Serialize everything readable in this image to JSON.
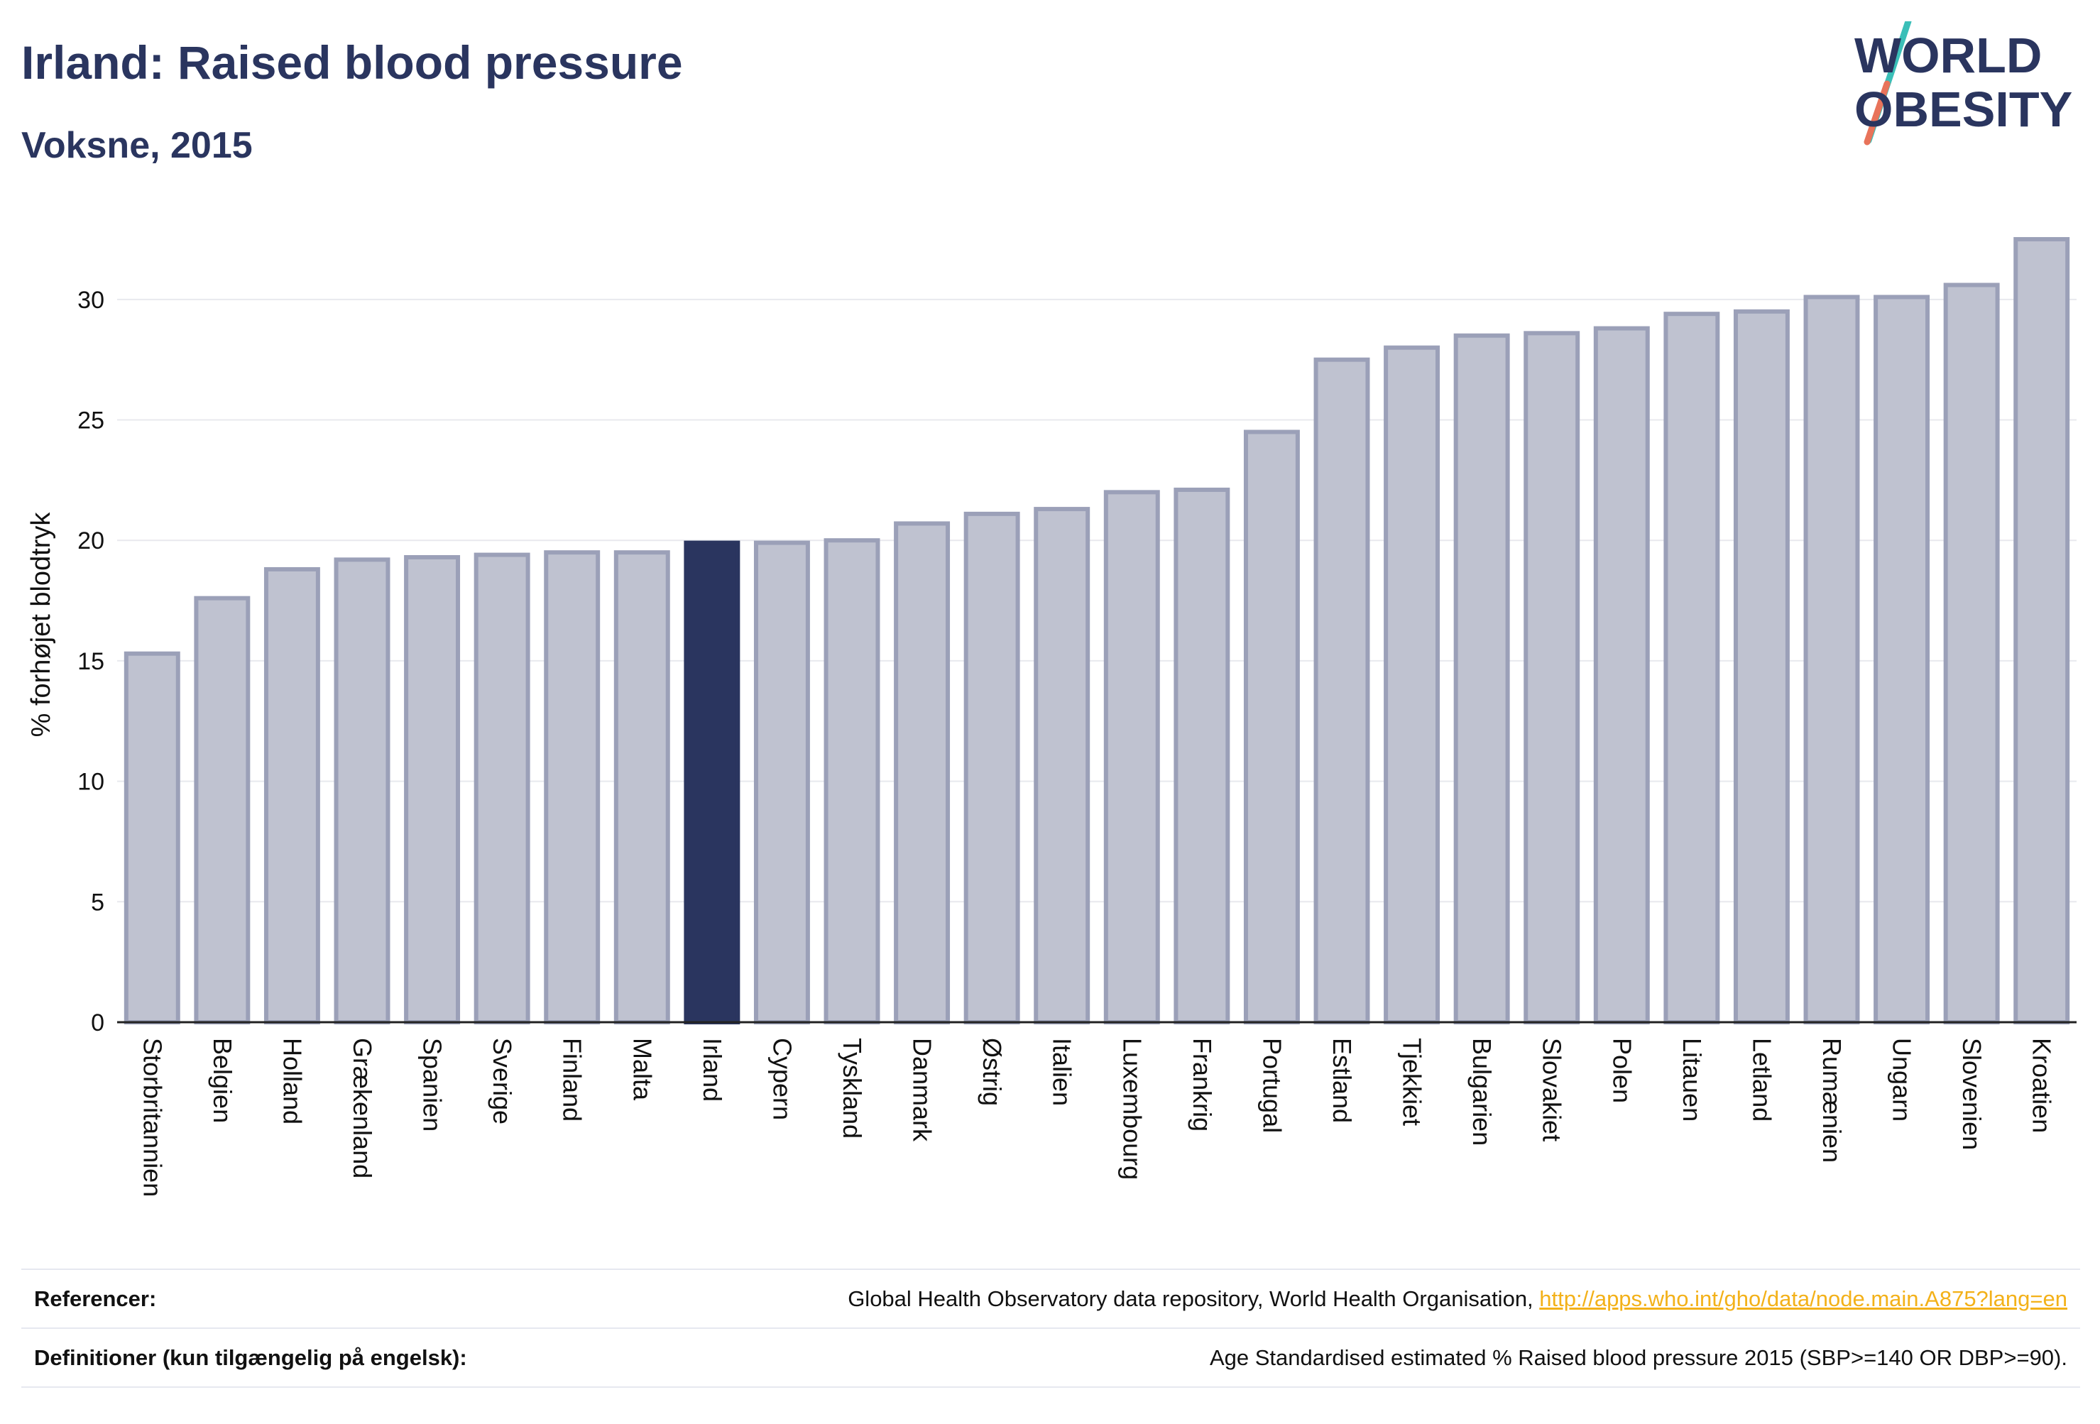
{
  "header": {
    "title": "Irland: Raised blood pressure",
    "subtitle": "Voksne, 2015"
  },
  "logo": {
    "line1": "WORLD",
    "line2": "OBESITY"
  },
  "colors": {
    "highlight": "#2a355f",
    "bar_fill": "#bfc2d0",
    "bar_stroke": "#9ba0b8",
    "grid": "#e8e9ee",
    "logo_teal": "#3bbfb8",
    "logo_coral": "#e8735a",
    "link": "#f3b119"
  },
  "chart_data": {
    "type": "bar",
    "ylabel": "% forhøjet blodtryk",
    "xlabel": "",
    "ylim": [
      0,
      33
    ],
    "yticks": [
      0,
      5,
      10,
      15,
      20,
      25,
      30
    ],
    "grid": true,
    "highlight": "Irland",
    "categories": [
      "Storbritannien",
      "Belgien",
      "Holland",
      "Grækenland",
      "Spanien",
      "Sverige",
      "Finland",
      "Malta",
      "Irland",
      "Cypern",
      "Tyskland",
      "Danmark",
      "Østrig",
      "Italien",
      "Luxembourg",
      "Frankrig",
      "Portugal",
      "Estland",
      "Tjekkiet",
      "Bulgarien",
      "Slovakiet",
      "Polen",
      "Litauen",
      "Letland",
      "Rumænien",
      "Ungarn",
      "Slovenien",
      "Kroatien"
    ],
    "values": [
      15.3,
      17.6,
      18.8,
      19.2,
      19.3,
      19.4,
      19.5,
      19.5,
      19.9,
      19.9,
      20.0,
      20.7,
      21.1,
      21.3,
      22.0,
      22.1,
      24.5,
      27.5,
      28.0,
      28.5,
      28.6,
      28.8,
      29.4,
      29.5,
      30.1,
      30.1,
      30.6,
      32.5
    ]
  },
  "footer": {
    "references_label": "Referencer:",
    "references_text": "Global Health Observatory data repository, World Health Organisation, ",
    "references_link": "http://apps.who.int/gho/data/node.main.A875?lang=en",
    "definitions_label": "Definitioner (kun tilgængelig på engelsk):",
    "definitions_text": "Age Standardised estimated % Raised blood pressure 2015 (SBP>=140 OR DBP>=90)."
  }
}
